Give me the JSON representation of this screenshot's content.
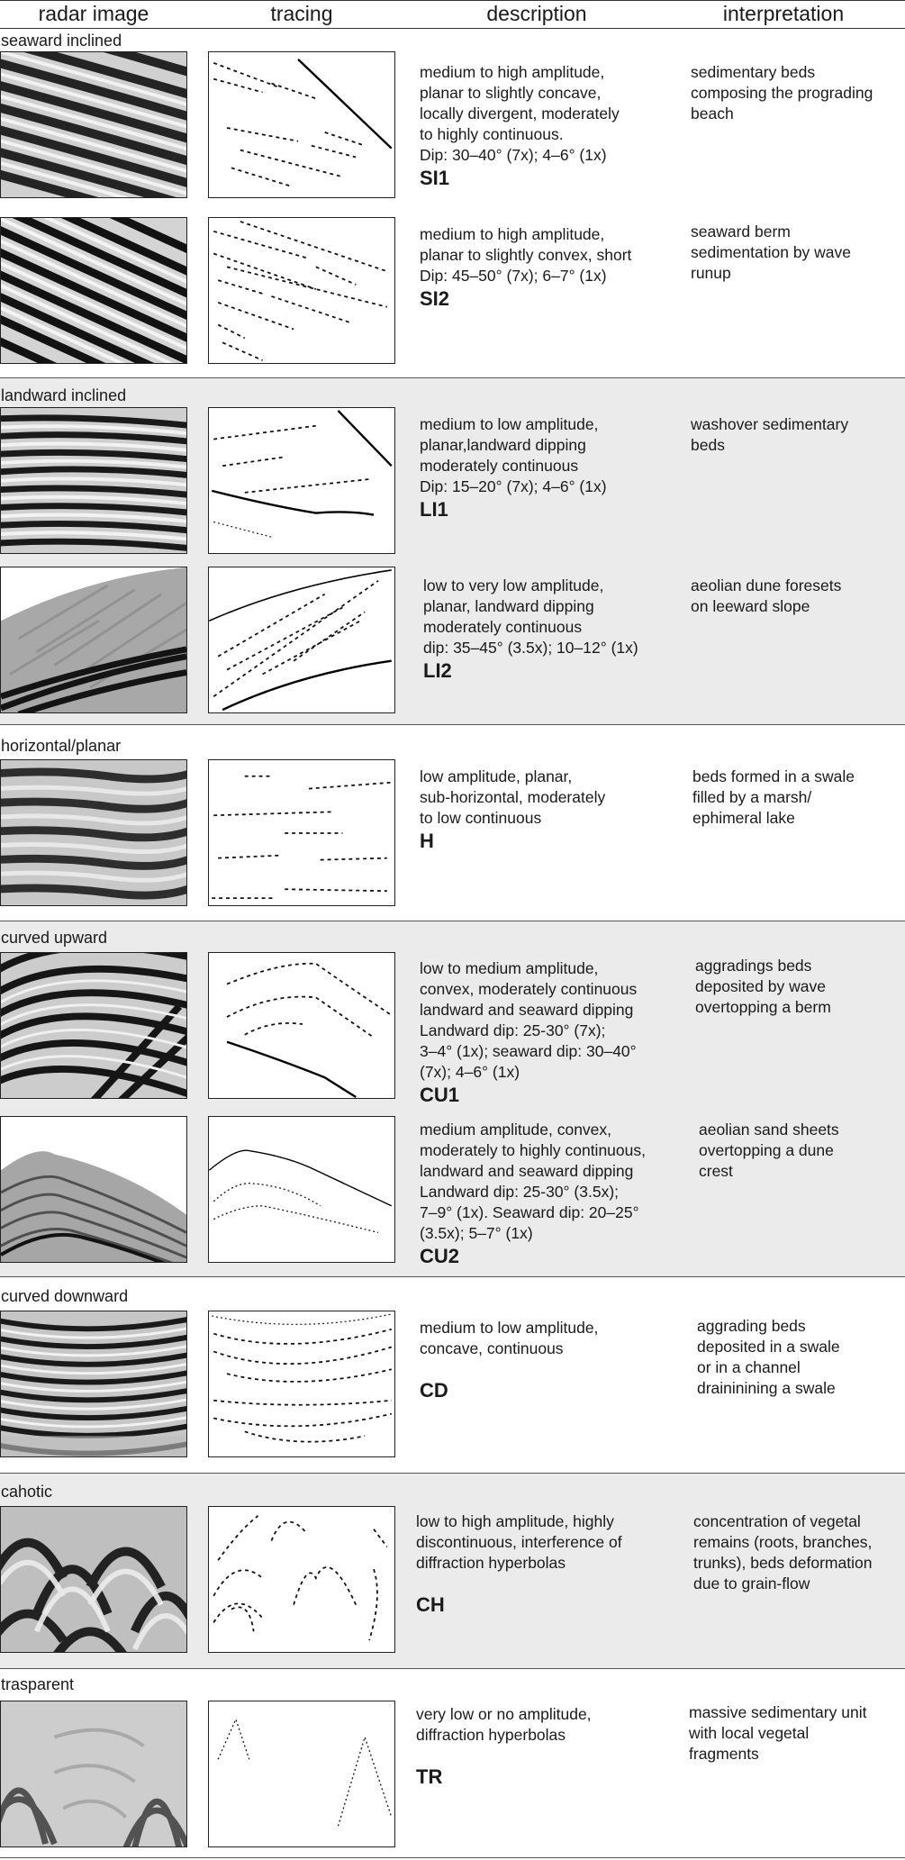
{
  "header": {
    "radar_image": "radar image",
    "tracing": "tracing",
    "description": "description",
    "interpretation": "interpretation"
  },
  "groups": [
    {
      "label": "seaward inclined"
    },
    {
      "label": "landward inclined"
    },
    {
      "label": "horizontal/planar"
    },
    {
      "label": "curved upward"
    },
    {
      "label": "curved downward"
    },
    {
      "label": "cahotic"
    },
    {
      "label": "trasparent"
    }
  ],
  "facies": [
    {
      "code": "SI1",
      "description": [
        "medium to high amplitude,",
        "planar to slightly concave,",
        "locally divergent, moderately",
        "to highly continuous.",
        "Dip: 30–40° (7x); 4–6° (1x)"
      ],
      "interpretation": [
        "sedimentary beds",
        "composing the prograding",
        "beach"
      ]
    },
    {
      "code": "SI2",
      "description": [
        "medium to high amplitude,",
        "planar to slightly convex, short",
        "Dip: 45–50° (7x); 6–7° (1x)"
      ],
      "interpretation": [
        "seaward berm",
        "sedimentation by wave",
        "runup"
      ]
    },
    {
      "code": "LI1",
      "description": [
        "medium to low amplitude,",
        "planar,landward dipping",
        "moderately continuous",
        "Dip: 15–20° (7x); 4–6° (1x)"
      ],
      "interpretation": [
        "washover sedimentary",
        "beds"
      ]
    },
    {
      "code": "LI2",
      "description": [
        "low to very low amplitude,",
        "planar, landward dipping",
        "moderately continuous",
        "dip: 35–45° (3.5x); 10–12° (1x)"
      ],
      "interpretation": [
        "aeolian dune foresets",
        "on leeward slope"
      ]
    },
    {
      "code": "H",
      "description": [
        "low amplitude, planar,",
        "sub-horizontal, moderately",
        "to low continuous"
      ],
      "interpretation": [
        "beds formed in a swale",
        "filled by a marsh/",
        "ephimeral  lake"
      ]
    },
    {
      "code": "CU1",
      "description": [
        "low to medium amplitude,",
        "convex, moderately continuous",
        "landward and seaward dipping",
        "Landward dip: 25-30° (7x);",
        "3–4° (1x); seaward dip: 30–40°",
        "(7x); 4–6° (1x)"
      ],
      "interpretation": [
        "aggradings beds",
        "deposited by wave",
        "overtopping a berm"
      ]
    },
    {
      "code": "CU2",
      "description": [
        "medium amplitude, convex,",
        "moderately to highly continuous,",
        "landward and seaward dipping",
        "Landward dip: 25-30° (3.5x);",
        "7–9° (1x). Seaward dip: 20–25°",
        "(3.5x); 5–7° (1x)"
      ],
      "interpretation": [
        "aeolian sand sheets",
        "overtopping a dune",
        "crest"
      ]
    },
    {
      "code": "CD",
      "description": [
        "medium to low amplitude,",
        "concave, continuous"
      ],
      "interpretation": [
        "aggrading beds",
        "deposited in a swale",
        "or in a channel",
        "draininining a swale"
      ]
    },
    {
      "code": "CH",
      "description": [
        "low to high amplitude, highly",
        "discontinuous, interference of",
        "diffraction hyperbolas"
      ],
      "interpretation": [
        "concentration of vegetal",
        "remains (roots, branches,",
        "trunks), beds deformation",
        "due to grain-flow"
      ]
    },
    {
      "code": "TR",
      "description": [
        "very low or no amplitude,",
        "diffraction hyperbolas"
      ],
      "interpretation": [
        "massive sedimentary unit",
        "with local vegetal",
        "fragments"
      ]
    }
  ]
}
